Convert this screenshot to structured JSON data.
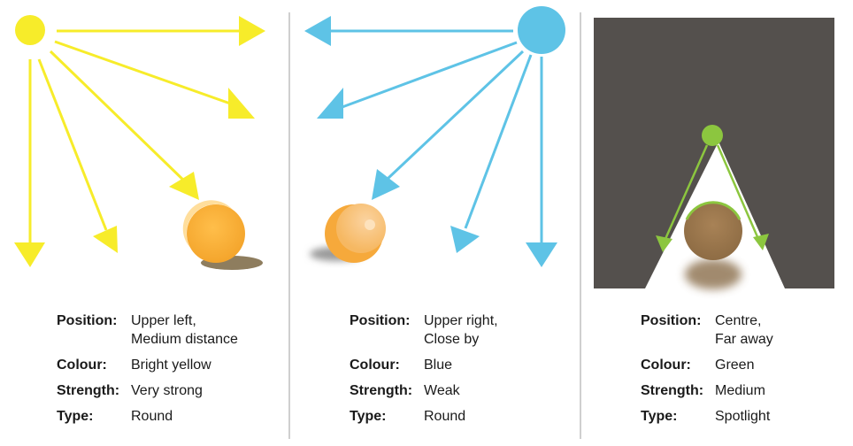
{
  "panels": [
    {
      "light_color": "#f7ec2a",
      "props": [
        {
          "label": "Position:",
          "value": "Upper left,\nMedium distance"
        },
        {
          "label": "Colour:",
          "value": "Bright yellow"
        },
        {
          "label": "Strength:",
          "value": "Very strong"
        },
        {
          "label": "Type:",
          "value": "Round"
        }
      ]
    },
    {
      "light_color": "#5ec3e6",
      "props": [
        {
          "label": "Position:",
          "value": "Upper right,\nClose by"
        },
        {
          "label": "Colour:",
          "value": "Blue"
        },
        {
          "label": "Strength:",
          "value": "Weak"
        },
        {
          "label": "Type:",
          "value": "Round"
        }
      ]
    },
    {
      "light_color": "#8cc63f",
      "background_color": "#54504d",
      "props": [
        {
          "label": "Position:",
          "value": "Centre,\nFar away"
        },
        {
          "label": "Colour:",
          "value": "Green"
        },
        {
          "label": "Strength:",
          "value": "Medium"
        },
        {
          "label": "Type:",
          "value": "Spotlight"
        }
      ]
    }
  ]
}
